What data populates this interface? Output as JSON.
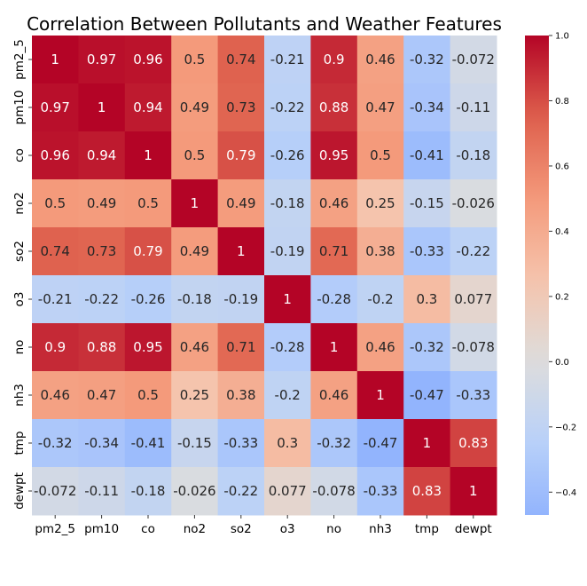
{
  "chart_data": {
    "type": "heatmap",
    "title": "Correlation Between Pollutants and Weather Features",
    "x_labels": [
      "pm2_5",
      "pm10",
      "co",
      "no2",
      "so2",
      "o3",
      "no",
      "nh3",
      "tmp",
      "dewpt"
    ],
    "y_labels": [
      "pm2_5",
      "pm10",
      "co",
      "no2",
      "so2",
      "o3",
      "no",
      "nh3",
      "tmp",
      "dewpt"
    ],
    "values": [
      [
        "1",
        "0.97",
        "0.96",
        "0.5",
        "0.74",
        "-0.21",
        "0.9",
        "0.46",
        "-0.32",
        "-0.072"
      ],
      [
        "0.97",
        "1",
        "0.94",
        "0.49",
        "0.73",
        "-0.22",
        "0.88",
        "0.47",
        "-0.34",
        "-0.11"
      ],
      [
        "0.96",
        "0.94",
        "1",
        "0.5",
        "0.79",
        "-0.26",
        "0.95",
        "0.5",
        "-0.41",
        "-0.18"
      ],
      [
        "0.5",
        "0.49",
        "0.5",
        "1",
        "0.49",
        "-0.18",
        "0.46",
        "0.25",
        "-0.15",
        "-0.026"
      ],
      [
        "0.74",
        "0.73",
        "0.79",
        "0.49",
        "1",
        "-0.19",
        "0.71",
        "0.38",
        "-0.33",
        "-0.22"
      ],
      [
        "-0.21",
        "-0.22",
        "-0.26",
        "-0.18",
        "-0.19",
        "1",
        "-0.28",
        "-0.2",
        "0.3",
        "0.077"
      ],
      [
        "0.9",
        "0.88",
        "0.95",
        "0.46",
        "0.71",
        "-0.28",
        "1",
        "0.46",
        "-0.32",
        "-0.078"
      ],
      [
        "0.46",
        "0.47",
        "0.5",
        "0.25",
        "0.38",
        "-0.2",
        "0.46",
        "1",
        "-0.47",
        "-0.33"
      ],
      [
        "-0.32",
        "-0.34",
        "-0.41",
        "-0.15",
        "-0.33",
        "0.3",
        "-0.32",
        "-0.47",
        "1",
        "0.83"
      ],
      [
        "-0.072",
        "-0.11",
        "-0.18",
        "-0.026",
        "-0.22",
        "0.077",
        "-0.078",
        "-0.33",
        "0.83",
        "1"
      ]
    ],
    "colormap": "coolwarm",
    "center": 0,
    "colorbar": {
      "range": [
        -0.47,
        1.0
      ],
      "ticks": [
        "1.0",
        "0.8",
        "0.6",
        "0.4",
        "0.2",
        "0.0",
        "−0.2",
        "−0.4"
      ],
      "tick_values": [
        1.0,
        0.8,
        0.6,
        0.4,
        0.2,
        0.0,
        -0.2,
        -0.4
      ]
    }
  }
}
